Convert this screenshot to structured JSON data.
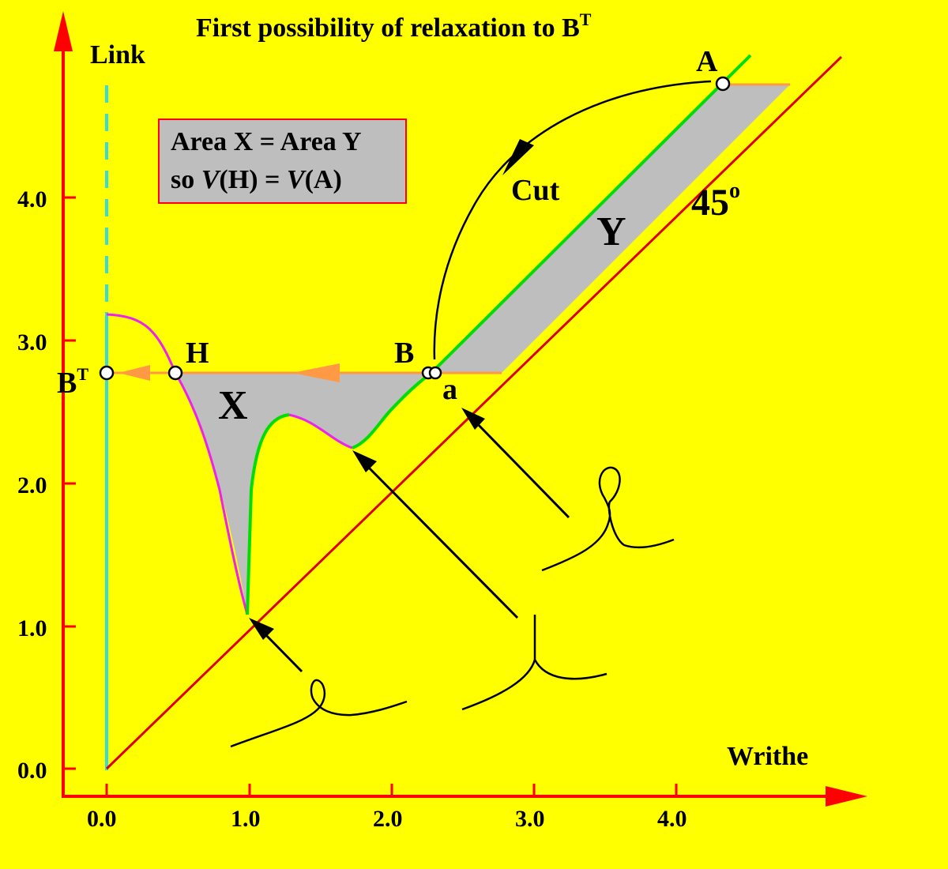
{
  "title": {
    "main": "First possibility of relaxation to B",
    "sup": "T"
  },
  "axes": {
    "y_label": "Link",
    "x_label": "Writhe",
    "x_ticks": [
      "0.0",
      "1.0",
      "2.0",
      "3.0",
      "4.0"
    ],
    "y_ticks": [
      "0.0",
      "1.0",
      "2.0",
      "3.0",
      "4.0"
    ]
  },
  "legend_box": {
    "line1": "Area X = Area Y",
    "line2_prefix": "so ",
    "v": "V",
    "h_paren": "(H) = ",
    "a_paren": "(A)"
  },
  "labels": {
    "A": "A",
    "B": "B",
    "H": "H",
    "a": "a",
    "BT_base": "B",
    "BT_sup": "T",
    "X": "X",
    "Y": "Y",
    "cut": "Cut",
    "angle_value": "45",
    "angle_sup": "o"
  },
  "colors": {
    "background": "#ffff00",
    "axis": "#ff0000",
    "diagonal": "#dd0000",
    "link_axis": "#33dddd",
    "green_curve": "#00dd00",
    "magenta_curve": "#ee22ee",
    "orange_line": "#ff9944",
    "shade": "#bebebe",
    "box_fill": "#bebebe",
    "box_border": "#ff0000"
  },
  "chart_data": {
    "type": "line",
    "xlabel": "Writhe",
    "ylabel": "Link",
    "xlim": [
      0,
      4.9
    ],
    "ylim": [
      0,
      4.8
    ],
    "diagonal_slope_deg": 45,
    "points": {
      "A": [
        4.32,
        4.77
      ],
      "B": [
        2.28,
        2.77
      ],
      "H": [
        0.48,
        2.77
      ],
      "BT": [
        0.0,
        2.77
      ],
      "a": [
        2.32,
        2.77
      ]
    }
  }
}
